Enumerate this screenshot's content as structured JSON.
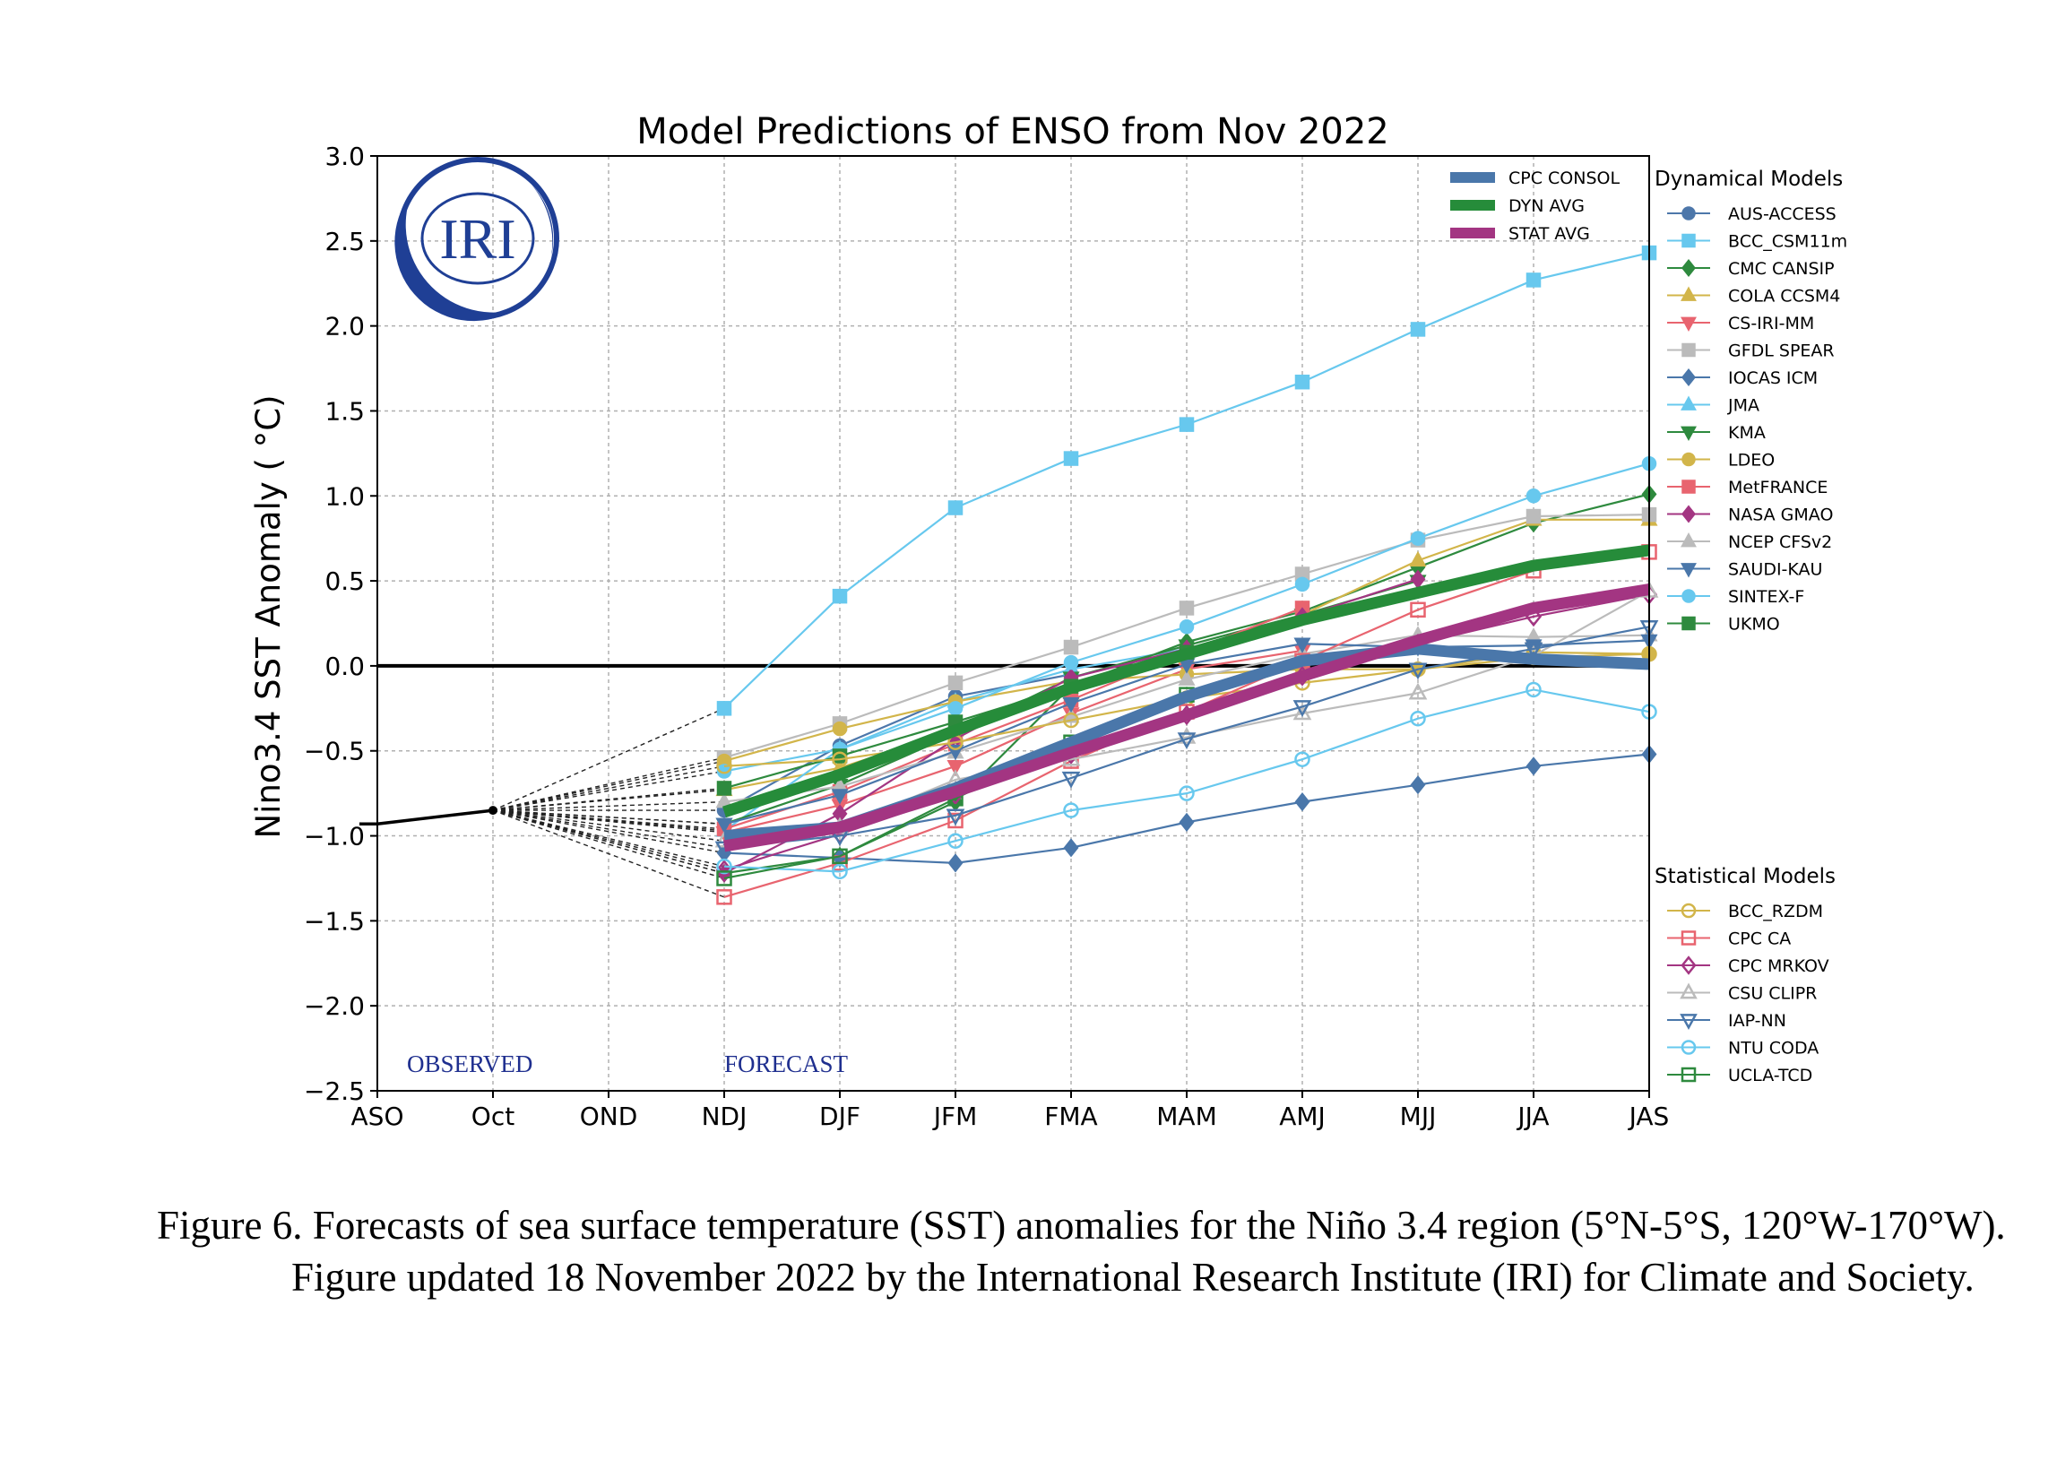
{
  "chart_data": {
    "type": "line",
    "title": "Model Predictions of ENSO from Nov 2022",
    "ylabel": "Nino3.4 SST Anomaly ( °C)",
    "xlabel": "",
    "categories": [
      "ASO",
      "Oct",
      "OND",
      "NDJ",
      "DJF",
      "JFM",
      "FMA",
      "MAM",
      "AMJ",
      "MJJ",
      "JJA",
      "JAS"
    ],
    "ylim": [
      -2.5,
      3.0
    ],
    "yticks": [
      "−2.5",
      "−2.0",
      "−1.5",
      "−1.0",
      "−0.5",
      "0.0",
      "0.5",
      "1.0",
      "1.5",
      "2.0",
      "2.5",
      "3.0"
    ],
    "grid": true,
    "logo_text": "IRI",
    "observed": {
      "label": "OBSERVED",
      "categories": [
        "ASO",
        "Oct"
      ],
      "values": [
        -0.93,
        -0.85
      ]
    },
    "forecast_label": "FORECAST",
    "consensus": [
      {
        "name": "CPC CONSOL",
        "color": "#4a77aa",
        "start": "NDJ",
        "values": [
          -1.0,
          -0.95,
          -0.72,
          -0.45,
          -0.18,
          0.03,
          0.1,
          0.04,
          0.01
        ]
      },
      {
        "name": "DYN AVG",
        "color": "#268c3a",
        "start": "NDJ",
        "values": [
          -0.86,
          -0.64,
          -0.38,
          -0.13,
          0.07,
          0.27,
          0.43,
          0.59,
          0.68
        ]
      },
      {
        "name": "STAT AVG",
        "color": "#a33582",
        "start": "NDJ",
        "values": [
          -1.06,
          -0.95,
          -0.74,
          -0.51,
          -0.29,
          -0.06,
          0.15,
          0.34,
          0.45
        ]
      }
    ],
    "dynamical_title": "Dynamical Models",
    "dynamical": [
      {
        "name": "AUS-ACCESS",
        "color": "#4d77aa",
        "marker": "circle",
        "start": "NDJ",
        "values": [
          -0.85,
          -0.47,
          -0.18,
          -0.05
        ]
      },
      {
        "name": "BCC_CSM11m",
        "color": "#67c8ee",
        "marker": "square",
        "start": "NDJ",
        "values": [
          -0.25,
          0.41,
          0.93,
          1.22,
          1.42,
          1.67,
          1.98,
          2.27,
          2.43
        ]
      },
      {
        "name": "CMC CANSIP",
        "color": "#2e8a3e",
        "marker": "diamond",
        "start": "NDJ",
        "values": [
          -1.22,
          -1.12,
          -0.8,
          -0.12,
          0.14,
          0.32,
          0.58,
          0.84,
          1.01
        ]
      },
      {
        "name": "COLA CCSM4",
        "color": "#d2b54a",
        "marker": "triangle-up",
        "start": "NDJ",
        "values": [
          -0.73,
          -0.6,
          -0.38,
          -0.16,
          0.05,
          0.3,
          0.62,
          0.86,
          0.86
        ]
      },
      {
        "name": "CS-IRI-MM",
        "color": "#e8646f",
        "marker": "triangle-down",
        "start": "NDJ",
        "values": [
          -0.98,
          -0.82,
          -0.59,
          -0.28,
          -0.02,
          0.09
        ]
      },
      {
        "name": "GFDL SPEAR",
        "color": "#bbbbbb",
        "marker": "square",
        "start": "NDJ",
        "values": [
          -0.54,
          -0.34,
          -0.1,
          0.11,
          0.34,
          0.54,
          0.74,
          0.88,
          0.89
        ]
      },
      {
        "name": "IOCAS ICM",
        "color": "#4a77aa",
        "marker": "diamond",
        "start": "NDJ",
        "values": [
          -1.1,
          -1.13,
          -1.16,
          -1.07,
          -0.92,
          -0.8,
          -0.7,
          -0.59,
          -0.52
        ]
      },
      {
        "name": "JMA",
        "color": "#67c8ee",
        "marker": "triangle-up",
        "start": "NDJ",
        "values": [
          -0.97,
          -0.49,
          -0.21,
          -0.02,
          0.1
        ]
      },
      {
        "name": "KMA",
        "color": "#2e8a3e",
        "marker": "triangle-down",
        "start": "NDJ",
        "values": [
          -0.93,
          -0.7,
          -0.4,
          -0.07,
          0.12,
          0.3,
          0.5
        ]
      },
      {
        "name": "LDEO",
        "color": "#d2b54a",
        "marker": "circle",
        "start": "NDJ",
        "values": [
          -0.56,
          -0.37,
          -0.21,
          -0.09,
          -0.05,
          -0.02,
          -0.02,
          0.08,
          0.07
        ]
      },
      {
        "name": "MetFRANCE",
        "color": "#e8646f",
        "marker": "square",
        "start": "NDJ",
        "values": [
          -0.96,
          -0.74,
          -0.46,
          -0.2,
          0.08,
          0.34
        ]
      },
      {
        "name": "NASA GMAO",
        "color": "#a33582",
        "marker": "diamond",
        "start": "NDJ",
        "values": [
          -1.22,
          -0.87,
          -0.43,
          -0.07,
          0.1,
          0.29,
          0.51
        ]
      },
      {
        "name": "NCEP CFSv2",
        "color": "#bbbbbb",
        "marker": "triangle-up",
        "start": "NDJ",
        "values": [
          -0.8,
          -0.71,
          -0.51,
          -0.3,
          -0.08,
          0.07,
          0.18,
          0.17,
          0.18
        ]
      },
      {
        "name": "SAUDI-KAU",
        "color": "#4a77aa",
        "marker": "triangle-down",
        "start": "NDJ",
        "values": [
          -0.93,
          -0.76,
          -0.5,
          -0.22,
          0.01,
          0.13,
          0.11,
          0.12,
          0.15
        ]
      },
      {
        "name": "SINTEX-F",
        "color": "#67c8ee",
        "marker": "circle",
        "start": "NDJ",
        "values": [
          -0.62,
          -0.49,
          -0.25,
          0.02,
          0.23,
          0.48,
          0.75,
          1.0,
          1.19
        ]
      },
      {
        "name": "UKMO",
        "color": "#2e8a3e",
        "marker": "square",
        "start": "NDJ",
        "values": [
          -0.72,
          -0.53,
          -0.33,
          -0.12,
          0.08
        ]
      }
    ],
    "statistical_title": "Statistical Models",
    "statistical": [
      {
        "name": "BCC_RZDM",
        "color": "#d2b54a",
        "marker": "circle",
        "start": "NDJ",
        "values": [
          -0.59,
          -0.55,
          -0.45,
          -0.32,
          -0.19,
          -0.1,
          -0.02,
          0.05,
          0.07
        ]
      },
      {
        "name": "CPC CA",
        "color": "#e8646f",
        "marker": "square",
        "start": "NDJ",
        "values": [
          -1.36,
          -1.16,
          -0.91,
          -0.56,
          -0.27,
          0.03,
          0.33,
          0.56,
          0.67
        ]
      },
      {
        "name": "CPC MRKOV",
        "color": "#a33582",
        "marker": "diamond",
        "start": "NDJ",
        "values": [
          -1.2,
          -0.99,
          -0.76,
          -0.52,
          -0.29,
          -0.06,
          0.13,
          0.29,
          0.42
        ]
      },
      {
        "name": "CSU CLIPR",
        "color": "#bbbbbb",
        "marker": "triangle-up",
        "start": "NDJ",
        "values": [
          -1.03,
          -0.95,
          -0.67,
          -0.55,
          -0.42,
          -0.28,
          -0.16,
          0.06,
          0.44
        ]
      },
      {
        "name": "IAP-NN",
        "color": "#4a77aa",
        "marker": "triangle-down",
        "start": "NDJ",
        "values": [
          -1.07,
          -1.0,
          -0.88,
          -0.66,
          -0.43,
          -0.24,
          -0.02,
          0.1,
          0.23
        ]
      },
      {
        "name": "NTU CODA",
        "color": "#67c8ee",
        "marker": "circle",
        "start": "NDJ",
        "values": [
          -1.18,
          -1.21,
          -1.03,
          -0.85,
          -0.75,
          -0.55,
          -0.31,
          -0.14,
          -0.27
        ]
      },
      {
        "name": "UCLA-TCD",
        "color": "#2e8a3e",
        "marker": "square",
        "start": "NDJ",
        "values": [
          -1.25,
          -1.12,
          -0.78,
          -0.45,
          -0.17
        ]
      }
    ]
  },
  "caption": "Figure 6. Forecasts of sea surface temperature (SST) anomalies for the Niño 3.4 region (5°N-5°S, 120°W-170°W). Figure updated 18 November 2022 by the International Research Institute (IRI) for Climate and Society."
}
